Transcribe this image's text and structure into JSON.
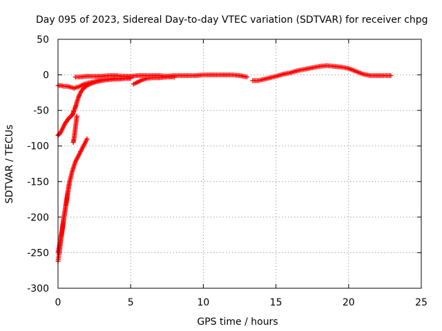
{
  "chart_data": {
    "type": "scatter",
    "title": "Day 095 of 2023, Sidereal Day-to-day VTEC variation (SDTVAR) for receiver chpg",
    "xlabel": "GPS time / hours",
    "ylabel": "SDTVAR / TECUs",
    "xlim": [
      0,
      25
    ],
    "ylim": [
      -300,
      50
    ],
    "xticks": [
      0,
      5,
      10,
      15,
      20,
      25
    ],
    "yticks": [
      -300,
      -250,
      -200,
      -150,
      -100,
      -50,
      0,
      50
    ],
    "grid": true,
    "marker": "plus",
    "color": "#ff0000",
    "series": [
      {
        "x": [
          0.0,
          0.1,
          0.2,
          0.3,
          0.4,
          0.5,
          0.6,
          0.7,
          0.8,
          0.9,
          1.0,
          1.05,
          1.1,
          1.15,
          1.2,
          1.25,
          1.3,
          1.4,
          1.5,
          1.6,
          1.8,
          2.0,
          2.3,
          2.6,
          3.0,
          3.4,
          3.8,
          4.2,
          4.6,
          5.0
        ],
        "y": [
          -85,
          -83,
          -80,
          -76,
          -72,
          -68,
          -65,
          -62,
          -60,
          -58,
          -56,
          -53,
          -50,
          -48,
          -45,
          -42,
          -38,
          -32,
          -27,
          -23,
          -18,
          -15,
          -12,
          -10,
          -8,
          -7,
          -6,
          -6,
          -5,
          -5
        ]
      },
      {
        "x": [
          1.05,
          1.1,
          1.15,
          1.2,
          1.25,
          1.3
        ],
        "y": [
          -95,
          -90,
          -82,
          -74,
          -66,
          -58
        ]
      },
      {
        "x": [
          0.0,
          0.2,
          0.4,
          0.6,
          0.8,
          1.0,
          1.1
        ],
        "y": [
          -15,
          -15,
          -16,
          -16,
          -17,
          -18,
          -19
        ]
      },
      {
        "x": [
          1.2,
          1.4,
          1.6,
          1.8,
          2.0,
          2.2,
          2.4,
          2.6,
          2.8,
          3.0,
          3.5,
          4.0,
          4.5,
          5.0
        ],
        "y": [
          -18,
          -17,
          -15,
          -13,
          -12,
          -11,
          -10,
          -9,
          -8,
          -7,
          -6,
          -5,
          -5,
          -4
        ]
      },
      {
        "x": [
          1.2,
          1.5,
          2.0,
          2.5,
          3.0,
          3.5,
          4.0,
          4.5,
          5.0,
          5.5,
          6.0,
          6.5,
          7.0,
          7.5,
          8.0,
          8.5,
          9.0,
          9.5,
          10.0,
          10.5,
          11.0,
          11.5,
          12.0,
          12.5,
          13.0
        ],
        "y": [
          -3,
          -3,
          -2,
          -2,
          -2,
          -1,
          -1,
          -2,
          -2,
          -1,
          -1,
          -1,
          -1,
          -2,
          -1,
          -1,
          -1,
          -1,
          0,
          0,
          0,
          0,
          0,
          -1,
          -3
        ]
      },
      {
        "x": [
          5.2,
          5.5,
          5.8,
          6.1,
          6.5,
          7.0,
          7.5,
          8.0
        ],
        "y": [
          -13,
          -10,
          -7,
          -5,
          -4,
          -4,
          -3,
          -3
        ]
      },
      {
        "x": [
          0.0,
          0.05,
          0.1,
          0.15,
          0.2,
          0.25,
          0.3,
          0.35,
          0.4,
          0.45,
          0.5,
          0.55,
          0.6,
          0.65,
          0.7,
          0.75,
          0.8,
          0.85,
          0.9,
          0.95,
          1.0,
          1.1,
          1.2,
          1.3,
          1.4,
          1.5,
          1.6,
          1.7,
          1.8,
          1.9,
          2.0
        ],
        "y": [
          -262,
          -255,
          -248,
          -240,
          -232,
          -225,
          -218,
          -210,
          -202,
          -196,
          -190,
          -182,
          -176,
          -168,
          -162,
          -156,
          -150,
          -146,
          -142,
          -138,
          -134,
          -128,
          -122,
          -118,
          -114,
          -110,
          -106,
          -102,
          -98,
          -94,
          -90
        ]
      },
      {
        "x": [
          0.0,
          0.1,
          0.2,
          0.3,
          0.4,
          0.5,
          0.6,
          0.7,
          0.8
        ],
        "y": [
          -250,
          -240,
          -228,
          -215,
          -200,
          -188,
          -175,
          -162,
          -150
        ]
      },
      {
        "x": [
          13.4,
          13.8,
          14.2,
          14.6,
          15.0,
          15.5,
          16.0,
          16.5,
          17.0,
          17.5,
          18.0,
          18.5,
          19.0,
          19.5,
          20.0,
          20.5,
          21.0,
          21.5,
          22.0,
          22.5,
          22.9
        ],
        "y": [
          -8,
          -8,
          -6,
          -4,
          -2,
          1,
          3,
          6,
          8,
          10,
          12,
          13,
          12,
          11,
          9,
          5,
          1,
          -1,
          -1,
          -1,
          -1
        ]
      }
    ]
  }
}
